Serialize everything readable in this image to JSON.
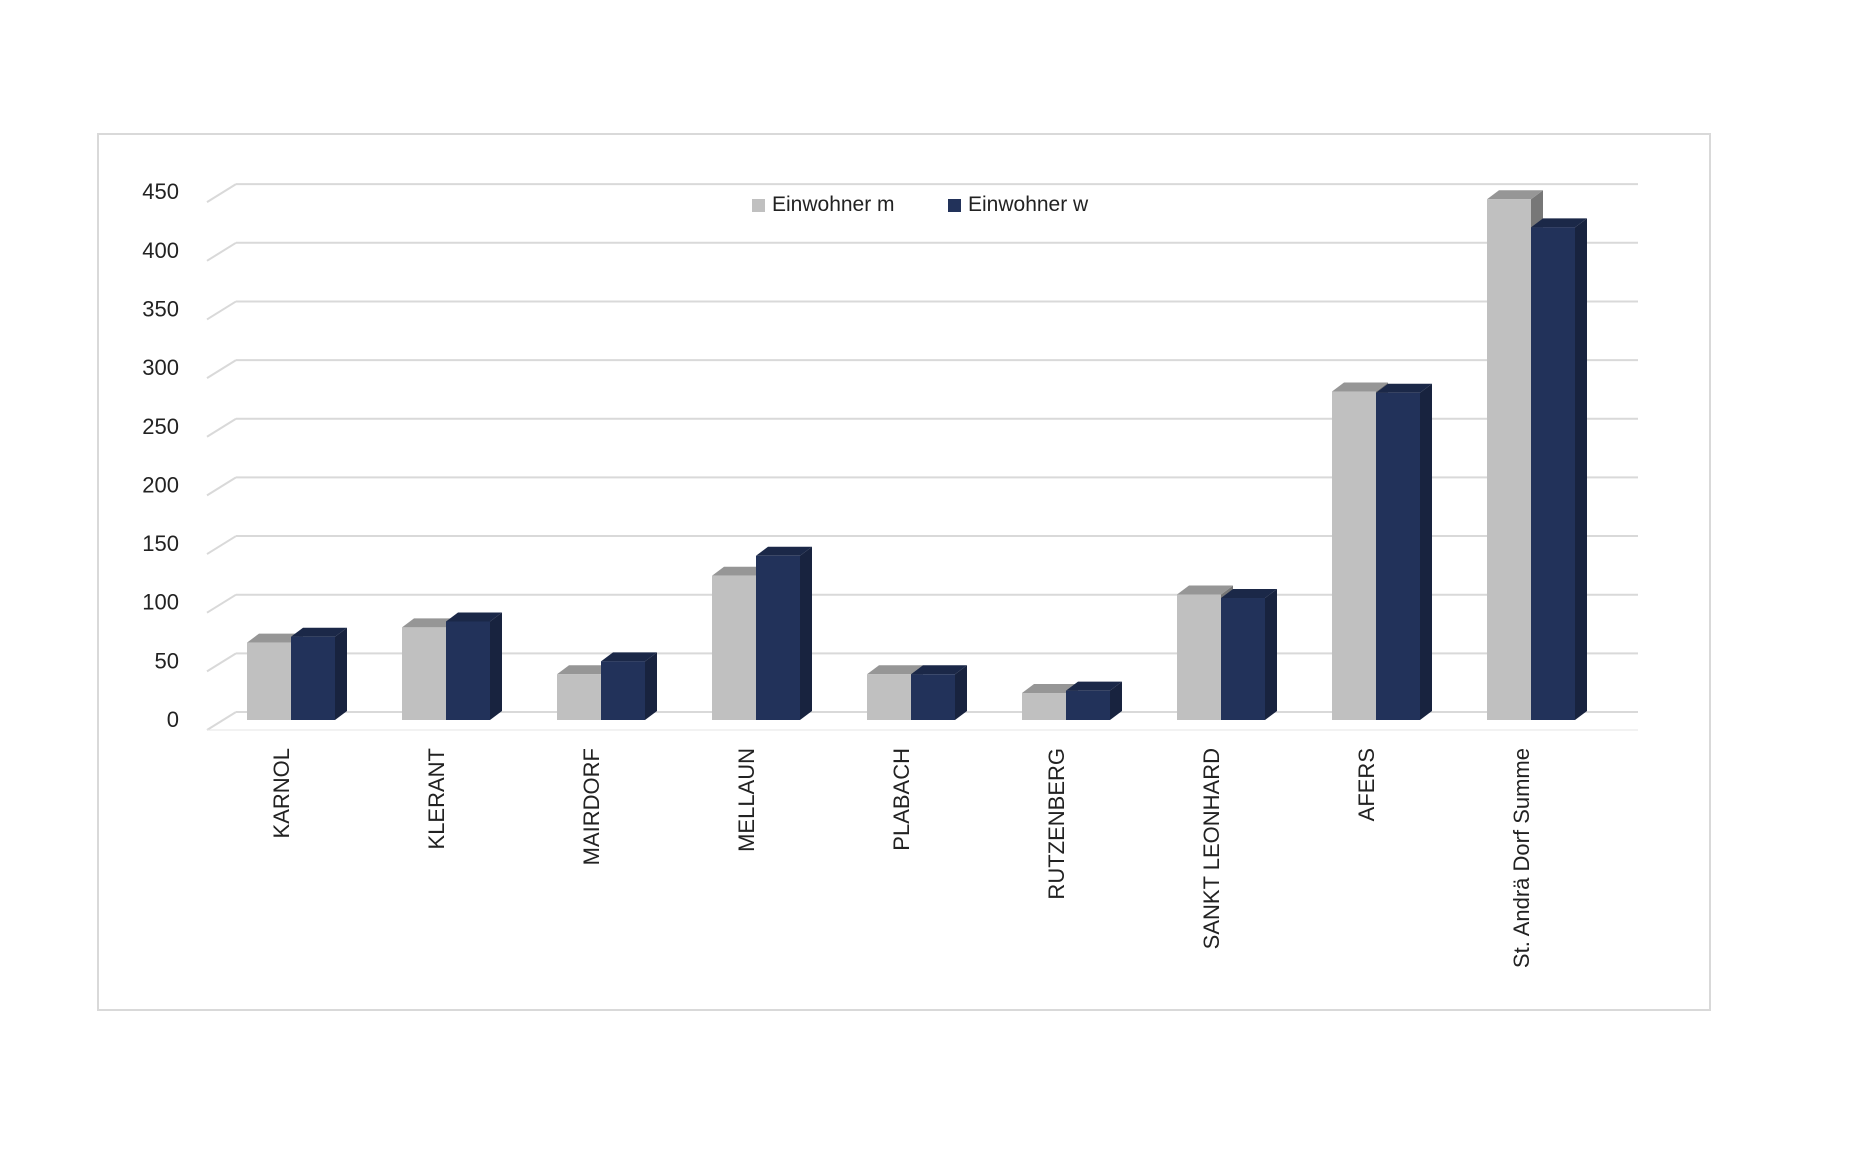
{
  "chart_data": {
    "type": "bar",
    "title": "",
    "xlabel": "",
    "ylabel": "",
    "ylim": [
      0,
      450
    ],
    "yticks": [
      0,
      50,
      100,
      150,
      200,
      250,
      300,
      350,
      400,
      450
    ],
    "grid": true,
    "legend_position": "top-center",
    "style": "3d-clustered-column",
    "categories": [
      "KARNOL",
      "KLERANT",
      "MAIRDORF",
      "MELLAUN",
      "PLABACH",
      "RUTZENBERG",
      "SANKT LEONHARD",
      "AFERS",
      "St. Andrä Dorf Summe"
    ],
    "series": [
      {
        "name": "Einwohner m",
        "color": "#c0c0c0",
        "values": [
          66,
          79,
          39,
          123,
          39,
          23,
          107,
          280,
          444
        ]
      },
      {
        "name": "Einwohner w",
        "color": "#22325a",
        "values": [
          71,
          84,
          50,
          140,
          39,
          25,
          104,
          279,
          420
        ]
      }
    ]
  }
}
